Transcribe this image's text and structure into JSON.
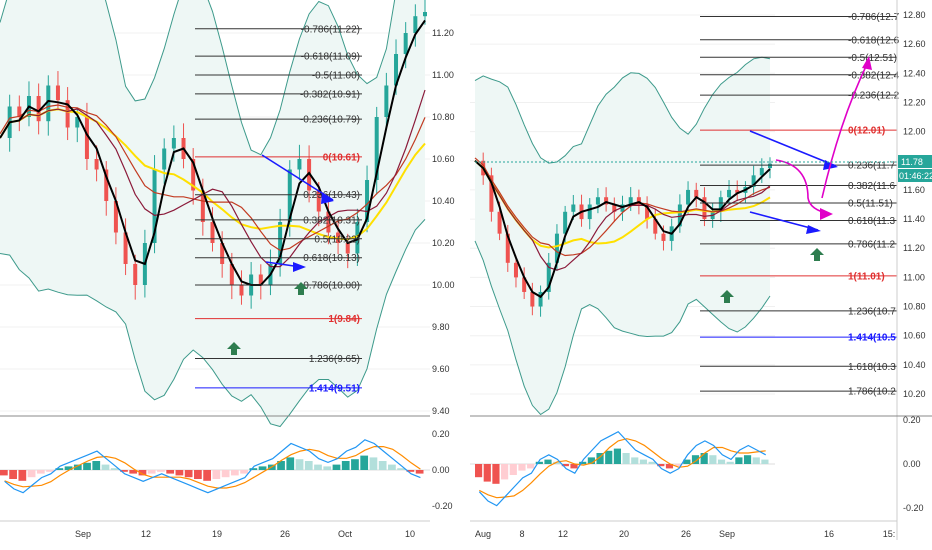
{
  "panels": [
    {
      "id": "left",
      "price_axis": {
        "ticks": [
          "11.20",
          "11.00",
          "10.80",
          "10.60",
          "10.40",
          "10.20",
          "10.00",
          "9.80",
          "9.60",
          "9.40"
        ]
      },
      "macd_axis": {
        "ticks": [
          "0.20",
          "0.00",
          "-0.20"
        ]
      },
      "date_axis": {
        "ticks": [
          "Sep",
          "12",
          "19",
          "26",
          "Oct",
          "10"
        ]
      },
      "fib_levels": [
        {
          "label": "-0.786(11.22)",
          "value": 11.22,
          "color": "#333333"
        },
        {
          "label": "-0.618(11.09)",
          "value": 11.09,
          "color": "#333333"
        },
        {
          "label": "-0.5(11.00)",
          "value": 11.0,
          "color": "#333333"
        },
        {
          "label": "-0.382(10.91)",
          "value": 10.91,
          "color": "#333333"
        },
        {
          "label": "-0.236(10.79)",
          "value": 10.79,
          "color": "#333333"
        },
        {
          "label": "0(10.61)",
          "value": 10.61,
          "color": "#e03030"
        },
        {
          "label": "0.236(10.43)",
          "value": 10.43,
          "color": "#333333"
        },
        {
          "label": "0.382(10.31)",
          "value": 10.31,
          "color": "#333333"
        },
        {
          "label": "0.5(10.22)",
          "value": 10.22,
          "color": "#333333"
        },
        {
          "label": "0.618(10.13)",
          "value": 10.13,
          "color": "#333333"
        },
        {
          "label": "0.786(10.00)",
          "value": 10.0,
          "color": "#333333"
        },
        {
          "label": "1(9.84)",
          "value": 9.84,
          "color": "#e03030"
        },
        {
          "label": "1.236(9.65)",
          "value": 9.65,
          "color": "#333333"
        },
        {
          "label": "1.414(9.51)",
          "value": 9.51,
          "color": "#1a1aff"
        }
      ],
      "price_series": [
        10.7,
        10.85,
        10.8,
        10.9,
        10.78,
        10.95,
        10.88,
        10.75,
        10.8,
        10.6,
        10.55,
        10.4,
        10.25,
        10.1,
        10.0,
        10.2,
        10.55,
        10.65,
        10.7,
        10.6,
        10.45,
        10.3,
        10.2,
        10.1,
        10.0,
        9.95,
        10.05,
        10.0,
        10.1,
        10.3,
        10.55,
        10.6,
        10.45,
        10.35,
        10.25,
        10.2,
        10.15,
        10.3,
        10.5,
        10.8,
        10.95,
        11.1,
        11.2,
        11.28,
        11.3
      ]
    },
    {
      "id": "right",
      "price_axis": {
        "ticks": [
          "12.80",
          "12.60",
          "12.40",
          "12.20",
          "12.00",
          "11.80",
          "11.60",
          "11.40",
          "11.20",
          "11.00",
          "10.80",
          "10.60",
          "10.40",
          "10.20"
        ]
      },
      "macd_axis": {
        "ticks": [
          "0.20",
          "0.00",
          "-0.20"
        ]
      },
      "date_axis": {
        "ticks": [
          "Aug",
          "8",
          "12",
          "20",
          "26",
          "Sep",
          "16",
          "15:"
        ]
      },
      "last_price": {
        "value": "11.78",
        "countdown": "01:46:22"
      },
      "fib_levels": [
        {
          "label": "-0.786(12.7",
          "value": 12.79,
          "color": "#333333"
        },
        {
          "label": "-0.618(12.6",
          "value": 12.63,
          "color": "#333333"
        },
        {
          "label": "-0.5(12.51)",
          "value": 12.51,
          "color": "#333333"
        },
        {
          "label": "-0.382(12.4",
          "value": 12.39,
          "color": "#333333"
        },
        {
          "label": "-0.236(12.2",
          "value": 12.25,
          "color": "#333333"
        },
        {
          "label": "0(12.01)",
          "value": 12.01,
          "color": "#e03030"
        },
        {
          "label": "0.236(11.7",
          "value": 11.77,
          "color": "#333333"
        },
        {
          "label": "0.382(11.6",
          "value": 11.63,
          "color": "#333333"
        },
        {
          "label": "0.5(11.51)",
          "value": 11.51,
          "color": "#333333"
        },
        {
          "label": "0.618(11.3",
          "value": 11.39,
          "color": "#333333"
        },
        {
          "label": "0.786(11.2",
          "value": 11.23,
          "color": "#333333"
        },
        {
          "label": "1(11.01)",
          "value": 11.01,
          "color": "#e03030"
        },
        {
          "label": "1.236(10.7",
          "value": 10.77,
          "color": "#333333"
        },
        {
          "label": "1.414(10.5",
          "value": 10.59,
          "color": "#1a1aff"
        },
        {
          "label": "1.618(10.3",
          "value": 10.39,
          "color": "#333333"
        },
        {
          "label": "1.786(10.2",
          "value": 10.22,
          "color": "#333333"
        }
      ],
      "price_series": [
        11.8,
        11.7,
        11.45,
        11.3,
        11.1,
        11.0,
        10.9,
        10.8,
        10.9,
        11.1,
        11.3,
        11.45,
        11.5,
        11.4,
        11.5,
        11.55,
        11.5,
        11.45,
        11.5,
        11.55,
        11.5,
        11.4,
        11.3,
        11.25,
        11.35,
        11.5,
        11.6,
        11.55,
        11.4,
        11.45,
        11.55,
        11.6,
        11.58,
        11.62,
        11.7,
        11.75,
        11.78
      ]
    }
  ],
  "macd_histogram_left": [
    -0.03,
    -0.05,
    -0.06,
    -0.04,
    -0.02,
    -0.01,
    0.01,
    0.02,
    0.03,
    0.04,
    0.05,
    0.03,
    0.01,
    -0.01,
    -0.02,
    -0.03,
    -0.02,
    -0.01,
    -0.02,
    -0.03,
    -0.04,
    -0.05,
    -0.06,
    -0.05,
    -0.04,
    -0.03,
    -0.02,
    0.01,
    0.02,
    0.03,
    0.05,
    0.07,
    0.06,
    0.05,
    0.03,
    0.02,
    0.03,
    0.05,
    0.06,
    0.08,
    0.07,
    0.05,
    0.03,
    0.01,
    -0.01,
    -0.02
  ],
  "macd_histogram_right": [
    -0.06,
    -0.08,
    -0.09,
    -0.07,
    -0.05,
    -0.03,
    -0.02,
    0.01,
    0.02,
    0.01,
    -0.01,
    -0.02,
    0.01,
    0.03,
    0.05,
    0.06,
    0.07,
    0.05,
    0.03,
    0.02,
    0.01,
    -0.01,
    -0.02,
    -0.01,
    0.02,
    0.04,
    0.05,
    0.04,
    0.02,
    0.01,
    0.03,
    0.04,
    0.03,
    0.02
  ],
  "colors": {
    "band": "#3d9a8b",
    "band_fill": "#eef7f5",
    "ma_fast": "#000000",
    "ma_mid": "#8b1a3a",
    "ma_slow": "#ffe000",
    "ma_alt": "#c23b22",
    "candle_up": "#26a69a",
    "candle_down": "#ef5350",
    "arrow_blue": "#1a1aff",
    "arrow_green": "#2e7d4f",
    "arrow_magenta": "#e000c8",
    "macd_line": "#2196f3",
    "signal_line": "#ff8c00",
    "hist_up_strong": "#26a69a",
    "hist_up_weak": "#b2dfdb",
    "hist_down_strong": "#ef5350",
    "hist_down_weak": "#ffcdd2",
    "grid": "#f0f0f0",
    "separator": "#888888",
    "last_price_tag": "#26a69a",
    "countdown_tag": "#26a69a"
  }
}
